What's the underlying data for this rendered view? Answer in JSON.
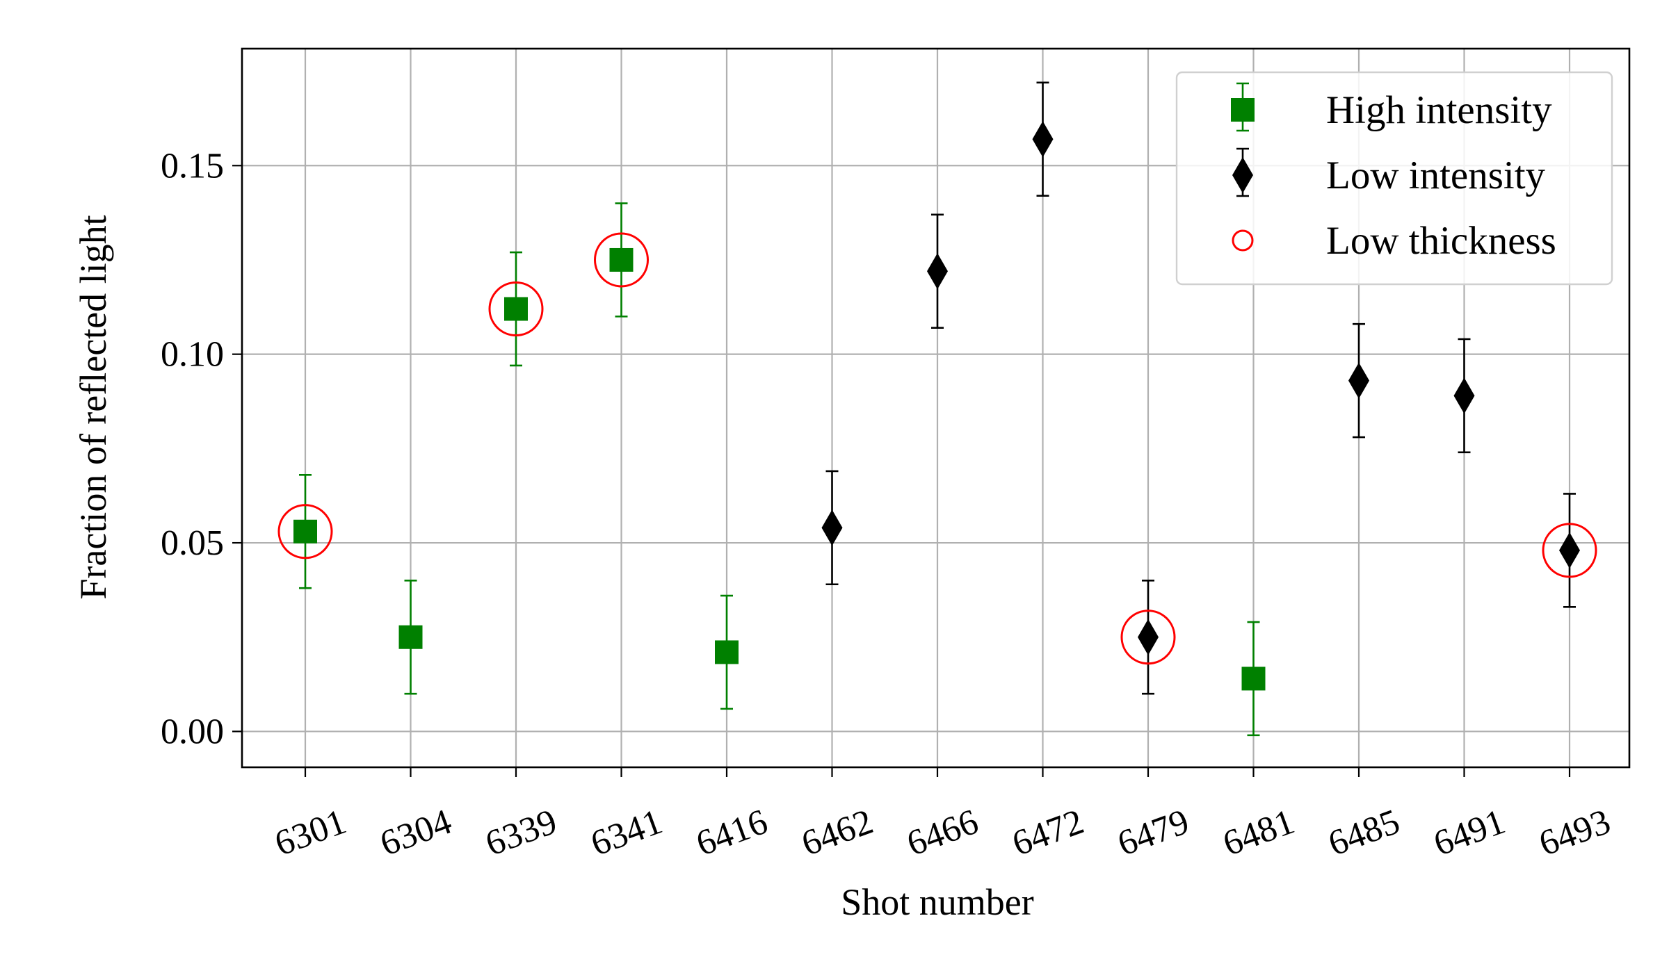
{
  "chart_data": {
    "type": "scatter",
    "xlabel": "Shot number",
    "ylabel": "Fraction of reflected light",
    "categories": [
      "6301",
      "6304",
      "6339",
      "6341",
      "6416",
      "6462",
      "6466",
      "6472",
      "6479",
      "6481",
      "6485",
      "6491",
      "6493"
    ],
    "ylim": [
      -0.0095,
      0.181
    ],
    "yticks": [
      0.0,
      0.05,
      0.1,
      0.15
    ],
    "ytick_labels": [
      "0.00",
      "0.05",
      "0.10",
      "0.15"
    ],
    "grid": true,
    "legend_position": "top-right",
    "series": [
      {
        "name": "High intensity",
        "marker": "square",
        "color": "#008000",
        "points": [
          {
            "x": "6301",
            "y": 0.053,
            "err": 0.015
          },
          {
            "x": "6304",
            "y": 0.025,
            "err": 0.015
          },
          {
            "x": "6339",
            "y": 0.112,
            "err": 0.015
          },
          {
            "x": "6341",
            "y": 0.125,
            "err": 0.015
          },
          {
            "x": "6416",
            "y": 0.021,
            "err": 0.015
          },
          {
            "x": "6481",
            "y": 0.014,
            "err": 0.015
          }
        ]
      },
      {
        "name": "Low intensity",
        "marker": "diamond",
        "color": "#000000",
        "points": [
          {
            "x": "6462",
            "y": 0.054,
            "err": 0.015
          },
          {
            "x": "6466",
            "y": 0.122,
            "err": 0.015
          },
          {
            "x": "6472",
            "y": 0.157,
            "err": 0.015
          },
          {
            "x": "6479",
            "y": 0.025,
            "err": 0.015
          },
          {
            "x": "6485",
            "y": 0.093,
            "err": 0.015
          },
          {
            "x": "6491",
            "y": 0.089,
            "err": 0.015
          },
          {
            "x": "6493",
            "y": 0.048,
            "err": 0.015
          }
        ]
      },
      {
        "name": "Low thickness",
        "marker": "open-circle",
        "color": "#ff0000",
        "points": [
          {
            "x": "6301",
            "y": 0.053
          },
          {
            "x": "6339",
            "y": 0.112
          },
          {
            "x": "6341",
            "y": 0.125
          },
          {
            "x": "6479",
            "y": 0.025
          },
          {
            "x": "6493",
            "y": 0.048
          }
        ]
      }
    ]
  }
}
